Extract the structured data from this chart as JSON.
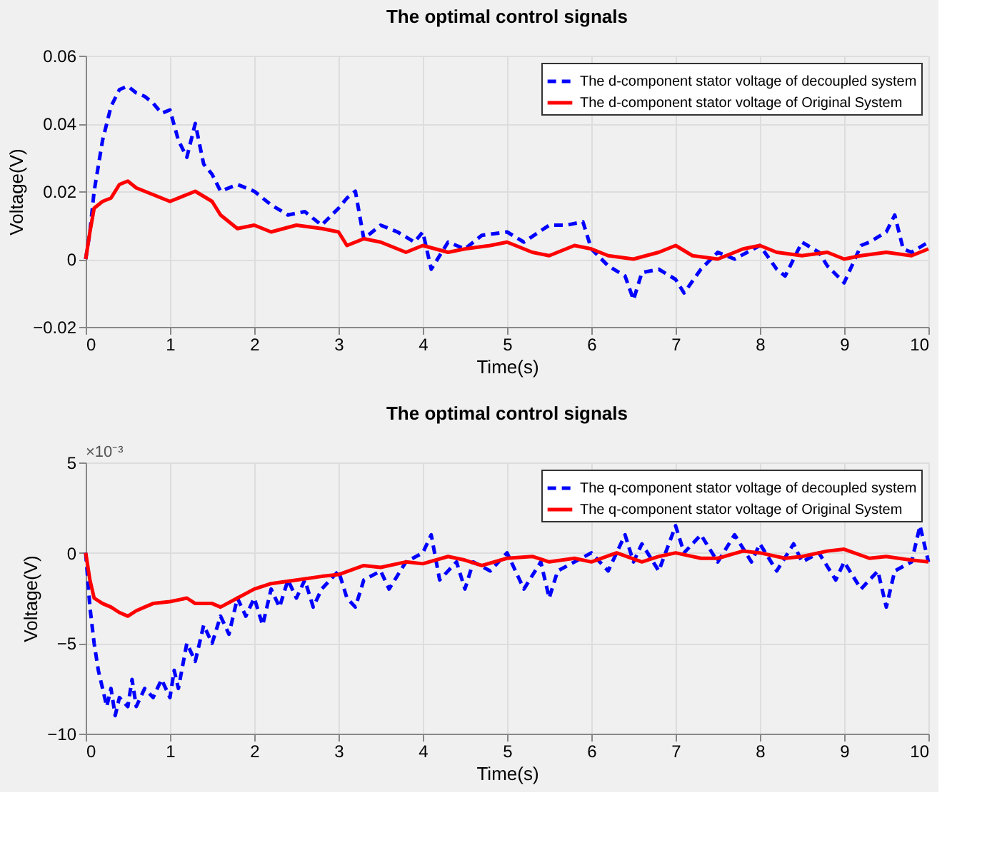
{
  "chart_data": [
    {
      "type": "line",
      "title": "The optimal control signals",
      "xlabel": "Time(s)",
      "ylabel": "Voltage(V)",
      "xlim": [
        0,
        10
      ],
      "xticks": [
        0,
        1,
        2,
        3,
        4,
        5,
        6,
        7,
        8,
        9,
        10
      ],
      "ylim": [
        -0.02,
        0.06
      ],
      "yticks": [
        -0.02,
        0,
        0.02,
        0.04,
        0.06
      ],
      "grid": true,
      "legend": "top right",
      "series": [
        {
          "name": "The d-component stator voltage of decoupled system",
          "color": "#0000ff",
          "line_style": "dashed",
          "x": [
            0,
            0.05,
            0.1,
            0.2,
            0.3,
            0.4,
            0.5,
            0.6,
            0.7,
            0.8,
            0.9,
            1.0,
            1.1,
            1.2,
            1.3,
            1.4,
            1.5,
            1.6,
            1.8,
            2.0,
            2.2,
            2.4,
            2.6,
            2.8,
            3.0,
            3.1,
            3.2,
            3.3,
            3.5,
            3.7,
            3.9,
            4.0,
            4.1,
            4.3,
            4.5,
            4.7,
            5.0,
            5.2,
            5.5,
            5.7,
            5.9,
            6.0,
            6.2,
            6.4,
            6.5,
            6.6,
            6.8,
            7.0,
            7.1,
            7.3,
            7.5,
            7.7,
            8.0,
            8.2,
            8.3,
            8.5,
            8.7,
            8.8,
            9.0,
            9.2,
            9.3,
            9.5,
            9.6,
            9.7,
            9.8,
            10
          ],
          "values": [
            0,
            0.008,
            0.02,
            0.035,
            0.045,
            0.05,
            0.051,
            0.049,
            0.048,
            0.046,
            0.043,
            0.044,
            0.035,
            0.03,
            0.04,
            0.028,
            0.025,
            0.02,
            0.022,
            0.02,
            0.016,
            0.013,
            0.014,
            0.01,
            0.015,
            0.018,
            0.02,
            0.006,
            0.01,
            0.008,
            0.005,
            0.008,
            -0.003,
            0.005,
            0.003,
            0.007,
            0.008,
            0.005,
            0.01,
            0.01,
            0.011,
            0.003,
            -0.002,
            -0.005,
            -0.012,
            -0.004,
            -0.003,
            -0.006,
            -0.01,
            -0.003,
            0.002,
            0,
            0.004,
            -0.003,
            -0.005,
            0.005,
            0.002,
            -0.002,
            -0.007,
            0.004,
            0.005,
            0.008,
            0.013,
            0.003,
            0.002,
            0.005
          ]
        },
        {
          "name": "The d-component stator voltage of Original System",
          "color": "#ff0000",
          "line_style": "solid",
          "x": [
            0,
            0.05,
            0.1,
            0.2,
            0.3,
            0.4,
            0.5,
            0.6,
            0.8,
            1.0,
            1.2,
            1.3,
            1.5,
            1.6,
            1.8,
            2.0,
            2.2,
            2.5,
            2.8,
            3.0,
            3.1,
            3.3,
            3.5,
            3.8,
            4.0,
            4.3,
            4.5,
            4.8,
            5.0,
            5.3,
            5.5,
            5.8,
            6.0,
            6.2,
            6.5,
            6.8,
            7.0,
            7.2,
            7.5,
            7.8,
            8.0,
            8.2,
            8.5,
            8.8,
            9.0,
            9.2,
            9.5,
            9.8,
            10
          ],
          "values": [
            0,
            0.008,
            0.015,
            0.017,
            0.018,
            0.022,
            0.023,
            0.021,
            0.019,
            0.017,
            0.019,
            0.02,
            0.017,
            0.013,
            0.009,
            0.01,
            0.008,
            0.01,
            0.009,
            0.008,
            0.004,
            0.006,
            0.005,
            0.002,
            0.004,
            0.002,
            0.003,
            0.004,
            0.005,
            0.002,
            0.001,
            0.004,
            0.003,
            0.001,
            0,
            0.002,
            0.004,
            0.001,
            0,
            0.003,
            0.004,
            0.002,
            0.001,
            0.002,
            0,
            0.001,
            0.002,
            0.001,
            0.003
          ]
        }
      ]
    },
    {
      "type": "line",
      "title": "The optimal control signals",
      "xlabel": "Time(s)",
      "ylabel": "Voltage(V)",
      "annotations": [
        "×10⁻³"
      ],
      "xlim": [
        0,
        10
      ],
      "xticks": [
        0,
        1,
        2,
        3,
        4,
        5,
        6,
        7,
        8,
        9,
        10
      ],
      "ylim": [
        -10,
        5
      ],
      "yticks": [
        -10,
        -5,
        0,
        5
      ],
      "grid": true,
      "legend": "top right",
      "series": [
        {
          "name": "The q-component stator voltage of decoupled system",
          "color": "#0000ff",
          "line_style": "dashed",
          "x": [
            0,
            0.05,
            0.1,
            0.15,
            0.2,
            0.25,
            0.3,
            0.35,
            0.4,
            0.5,
            0.55,
            0.6,
            0.7,
            0.8,
            0.9,
            1.0,
            1.05,
            1.1,
            1.2,
            1.3,
            1.4,
            1.5,
            1.6,
            1.7,
            1.8,
            1.9,
            2.0,
            2.1,
            2.2,
            2.3,
            2.4,
            2.5,
            2.6,
            2.7,
            2.8,
            3.0,
            3.1,
            3.2,
            3.3,
            3.5,
            3.6,
            3.8,
            4.0,
            4.1,
            4.2,
            4.4,
            4.5,
            4.6,
            4.8,
            5.0,
            5.2,
            5.4,
            5.5,
            5.6,
            5.8,
            6.0,
            6.2,
            6.4,
            6.5,
            6.6,
            6.8,
            7.0,
            7.1,
            7.3,
            7.5,
            7.7,
            7.9,
            8.0,
            8.2,
            8.4,
            8.5,
            8.7,
            8.9,
            9.0,
            9.2,
            9.4,
            9.5,
            9.6,
            9.8,
            9.9,
            10
          ],
          "values": [
            0,
            -3,
            -5,
            -6.5,
            -7.5,
            -8.5,
            -7.5,
            -9,
            -8,
            -8.5,
            -7,
            -8.5,
            -7.5,
            -8,
            -7,
            -8,
            -6.5,
            -7.5,
            -5,
            -6,
            -4,
            -5,
            -3.5,
            -4.5,
            -2.5,
            -3.5,
            -2.5,
            -4,
            -2,
            -3,
            -1.5,
            -2.5,
            -1.5,
            -3,
            -2,
            -1,
            -2.5,
            -3,
            -1.5,
            -1,
            -2,
            -0.5,
            0,
            1,
            -1.5,
            -0.5,
            -2,
            -0.5,
            -1,
            0,
            -2,
            -0.5,
            -2.5,
            -1,
            -0.5,
            0,
            -1,
            1,
            -0.5,
            0.5,
            -1,
            1.5,
            0,
            1,
            -0.5,
            1,
            -0.5,
            0.5,
            -1,
            0.5,
            -0.5,
            0,
            -1.5,
            -0.5,
            -2,
            -1,
            -3,
            -1,
            -0.5,
            1.5,
            -0.5
          ]
        },
        {
          "name": "The q-component stator voltage of Original System",
          "color": "#ff0000",
          "line_style": "solid",
          "x": [
            0,
            0.05,
            0.1,
            0.2,
            0.3,
            0.4,
            0.5,
            0.6,
            0.7,
            0.8,
            1.0,
            1.2,
            1.3,
            1.5,
            1.6,
            1.8,
            2.0,
            2.2,
            2.5,
            2.8,
            3.0,
            3.3,
            3.5,
            3.8,
            4.0,
            4.3,
            4.5,
            4.7,
            5.0,
            5.3,
            5.5,
            5.8,
            6.0,
            6.3,
            6.6,
            6.8,
            7.0,
            7.3,
            7.5,
            7.8,
            8.0,
            8.3,
            8.5,
            8.8,
            9.0,
            9.3,
            9.5,
            9.8,
            10
          ],
          "values": [
            0,
            -1.5,
            -2.5,
            -2.8,
            -3,
            -3.3,
            -3.5,
            -3.2,
            -3,
            -2.8,
            -2.7,
            -2.5,
            -2.8,
            -2.8,
            -3,
            -2.5,
            -2,
            -1.7,
            -1.5,
            -1.3,
            -1.2,
            -0.7,
            -0.8,
            -0.5,
            -0.6,
            -0.2,
            -0.4,
            -0.7,
            -0.3,
            -0.2,
            -0.5,
            -0.3,
            -0.5,
            0,
            -0.5,
            -0.2,
            0,
            -0.3,
            -0.3,
            0.1,
            0,
            -0.3,
            -0.2,
            0.1,
            0.2,
            -0.3,
            -0.2,
            -0.4,
            -0.5
          ]
        }
      ]
    }
  ]
}
